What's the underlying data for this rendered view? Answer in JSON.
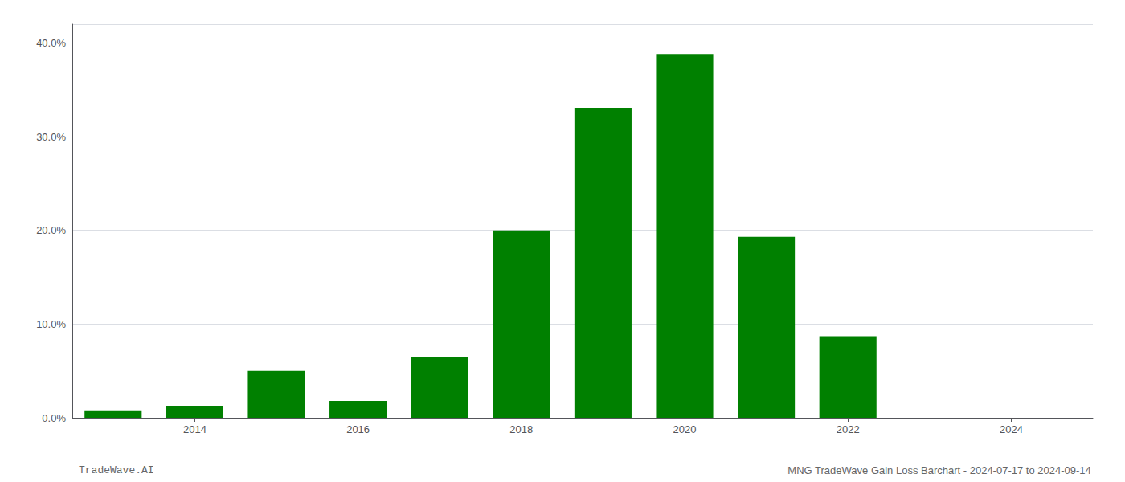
{
  "chart_data": {
    "type": "bar",
    "x": [
      2013,
      2014,
      2015,
      2016,
      2017,
      2018,
      2019,
      2020,
      2021,
      2022,
      2023
    ],
    "values": [
      0.008,
      0.012,
      0.05,
      0.018,
      0.065,
      0.2,
      0.33,
      0.388,
      0.193,
      0.087,
      0.0
    ],
    "color": "#008000",
    "xlim": [
      2012.5,
      2025.0
    ],
    "xticks": [
      2014,
      2016,
      2018,
      2020,
      2022,
      2024
    ],
    "ylim": [
      0,
      0.42
    ],
    "yticks": [
      {
        "value": 0.0,
        "label": "0.0%"
      },
      {
        "value": 0.1,
        "label": "10.0%"
      },
      {
        "value": 0.2,
        "label": "20.0%"
      },
      {
        "value": 0.3,
        "label": "30.0%"
      },
      {
        "value": 0.4,
        "label": "40.0%"
      }
    ],
    "grid": true,
    "annotations": [
      "TradeWave.AI",
      "MNG TradeWave Gain Loss Barchart - 2024-07-17 to 2024-09-14"
    ]
  }
}
